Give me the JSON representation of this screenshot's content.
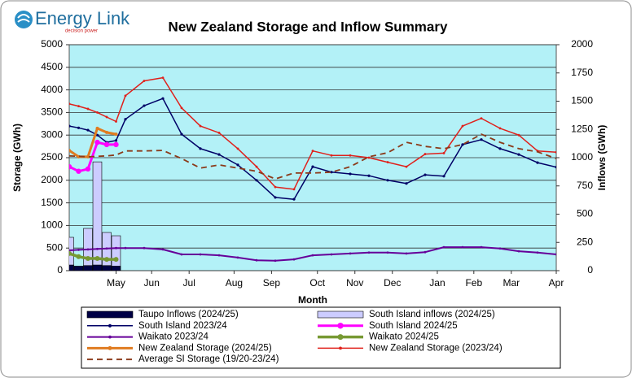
{
  "logo": {
    "name": "Energy Link",
    "tagline": "decision power"
  },
  "chart_data": {
    "type": "combo",
    "title": "New Zealand Storage and Inflow Summary",
    "x_label": "Month",
    "y_label": "Storage (GWh)",
    "y2_label": "Inflows (GWh)",
    "grid": true,
    "legend": "bottom",
    "background": "#b3f1f7",
    "xlim": [
      0,
      52
    ],
    "xticks": [
      {
        "value": 5,
        "label": "May"
      },
      {
        "value": 8.8,
        "label": "Jun"
      },
      {
        "value": 12.8,
        "label": "Jul"
      },
      {
        "value": 17.6,
        "label": "Aug"
      },
      {
        "value": 21.6,
        "label": "Sep"
      },
      {
        "value": 26.5,
        "label": "Oct"
      },
      {
        "value": 30.5,
        "label": "Nov"
      },
      {
        "value": 34.5,
        "label": "Dec"
      },
      {
        "value": 39.3,
        "label": "Jan"
      },
      {
        "value": 43.2,
        "label": "Feb"
      },
      {
        "value": 47.2,
        "label": "Mar"
      },
      {
        "value": 52,
        "label": "Apr"
      }
    ],
    "ylim": [
      0,
      5000
    ],
    "yticks": [
      0,
      500,
      1000,
      1500,
      2000,
      2500,
      3000,
      3500,
      4000,
      4500,
      5000
    ],
    "y2lim": [
      0,
      2000
    ],
    "y2ticks": [
      0,
      250,
      500,
      750,
      1000,
      1250,
      1500,
      1750,
      2000
    ],
    "x": [
      0,
      1,
      2,
      3,
      4,
      5,
      6,
      8,
      10,
      12,
      14,
      16,
      18,
      20,
      22,
      24,
      26,
      28,
      30,
      32,
      34,
      36,
      38,
      40,
      42,
      44,
      46,
      48,
      50,
      52
    ],
    "series": [
      {
        "name": "Taupo Inflows (2024/25)",
        "kind": "bar",
        "axis": "y2",
        "color": "#000044",
        "values": [
          50,
          40,
          45,
          50,
          45,
          40,
          null,
          null,
          null,
          null,
          null,
          null,
          null,
          null,
          null,
          null,
          null,
          null,
          null,
          null,
          null,
          null,
          null,
          null,
          null,
          null,
          null,
          null,
          null,
          null
        ]
      },
      {
        "name": "South Island inflows (2024/25)",
        "kind": "bar",
        "axis": "y2",
        "color": "#ccccff",
        "values": [
          295,
          null,
          374,
          963,
          338,
          309,
          null,
          null,
          null,
          null,
          null,
          null,
          null,
          null,
          null,
          null,
          null,
          null,
          null,
          null,
          null,
          null,
          null,
          null,
          null,
          null,
          null,
          null,
          null,
          null
        ]
      },
      {
        "name": "South Island 2023/24",
        "kind": "line",
        "color": "#000066",
        "width": 1.5,
        "marker": 1.6,
        "values": [
          3200,
          3160,
          3110,
          3000,
          2840,
          2880,
          3350,
          3650,
          3810,
          3020,
          2700,
          2570,
          2340,
          2000,
          1620,
          1580,
          2300,
          2180,
          2140,
          2100,
          2000,
          1930,
          2120,
          2090,
          2790,
          2900,
          2700,
          2570,
          2390,
          2290
        ]
      },
      {
        "name": "South Island 2024/25",
        "kind": "line",
        "color": "#ff00ff",
        "width": 3,
        "marker": 3.2,
        "values": [
          2300,
          2200,
          2250,
          2840,
          2790,
          2790,
          null,
          null,
          null,
          null,
          null,
          null,
          null,
          null,
          null,
          null,
          null,
          null,
          null,
          null,
          null,
          null,
          null,
          null,
          null,
          null,
          null,
          null,
          null,
          null
        ]
      },
      {
        "name": "Waikato 2023/24",
        "kind": "line",
        "color": "#660099",
        "width": 2,
        "marker": 1.4,
        "values": [
          450,
          460,
          470,
          480,
          490,
          500,
          500,
          500,
          470,
          360,
          360,
          340,
          290,
          230,
          220,
          250,
          340,
          360,
          380,
          400,
          400,
          380,
          410,
          520,
          520,
          520,
          490,
          430,
          400,
          360
        ]
      },
      {
        "name": "Waikato 2024/25",
        "kind": "line",
        "color": "#779933",
        "width": 3.5,
        "marker": 3,
        "values": [
          380,
          310,
          270,
          270,
          250,
          250,
          null,
          null,
          null,
          null,
          null,
          null,
          null,
          null,
          null,
          null,
          null,
          null,
          null,
          null,
          null,
          null,
          null,
          null,
          null,
          null,
          null,
          null,
          null,
          null
        ]
      },
      {
        "name": "New Zealand Storage (2024/25)",
        "kind": "line",
        "color": "#e07b20",
        "width": 3,
        "marker": 2,
        "values": [
          2660,
          2520,
          2520,
          3150,
          3060,
          3020,
          null,
          null,
          null,
          null,
          null,
          null,
          null,
          null,
          null,
          null,
          null,
          null,
          null,
          null,
          null,
          null,
          null,
          null,
          null,
          null,
          null,
          null,
          null,
          null
        ]
      },
      {
        "name": "New Zealand Storage (2023/24)",
        "kind": "line",
        "color": "#e0201b",
        "width": 1.5,
        "marker": 1.4,
        "values": [
          3690,
          3640,
          3580,
          3500,
          3400,
          3300,
          3870,
          4200,
          4270,
          3600,
          3200,
          3050,
          2700,
          2300,
          1850,
          1800,
          2650,
          2550,
          2550,
          2500,
          2400,
          2300,
          2580,
          2600,
          3200,
          3370,
          3150,
          3000,
          2650,
          2620
        ]
      },
      {
        "name": "Average SI Storage (19/20-23/24)",
        "kind": "line",
        "color": "#8b3a1a",
        "width": 1.8,
        "dash": "7 5",
        "values": [
          2540,
          2530,
          2520,
          2530,
          2540,
          2560,
          2650,
          2650,
          2660,
          2480,
          2270,
          2340,
          2270,
          2200,
          2030,
          2160,
          2160,
          2180,
          2300,
          2520,
          2610,
          2840,
          2750,
          2700,
          2790,
          3020,
          2840,
          2700,
          2630,
          2480
        ]
      }
    ]
  }
}
